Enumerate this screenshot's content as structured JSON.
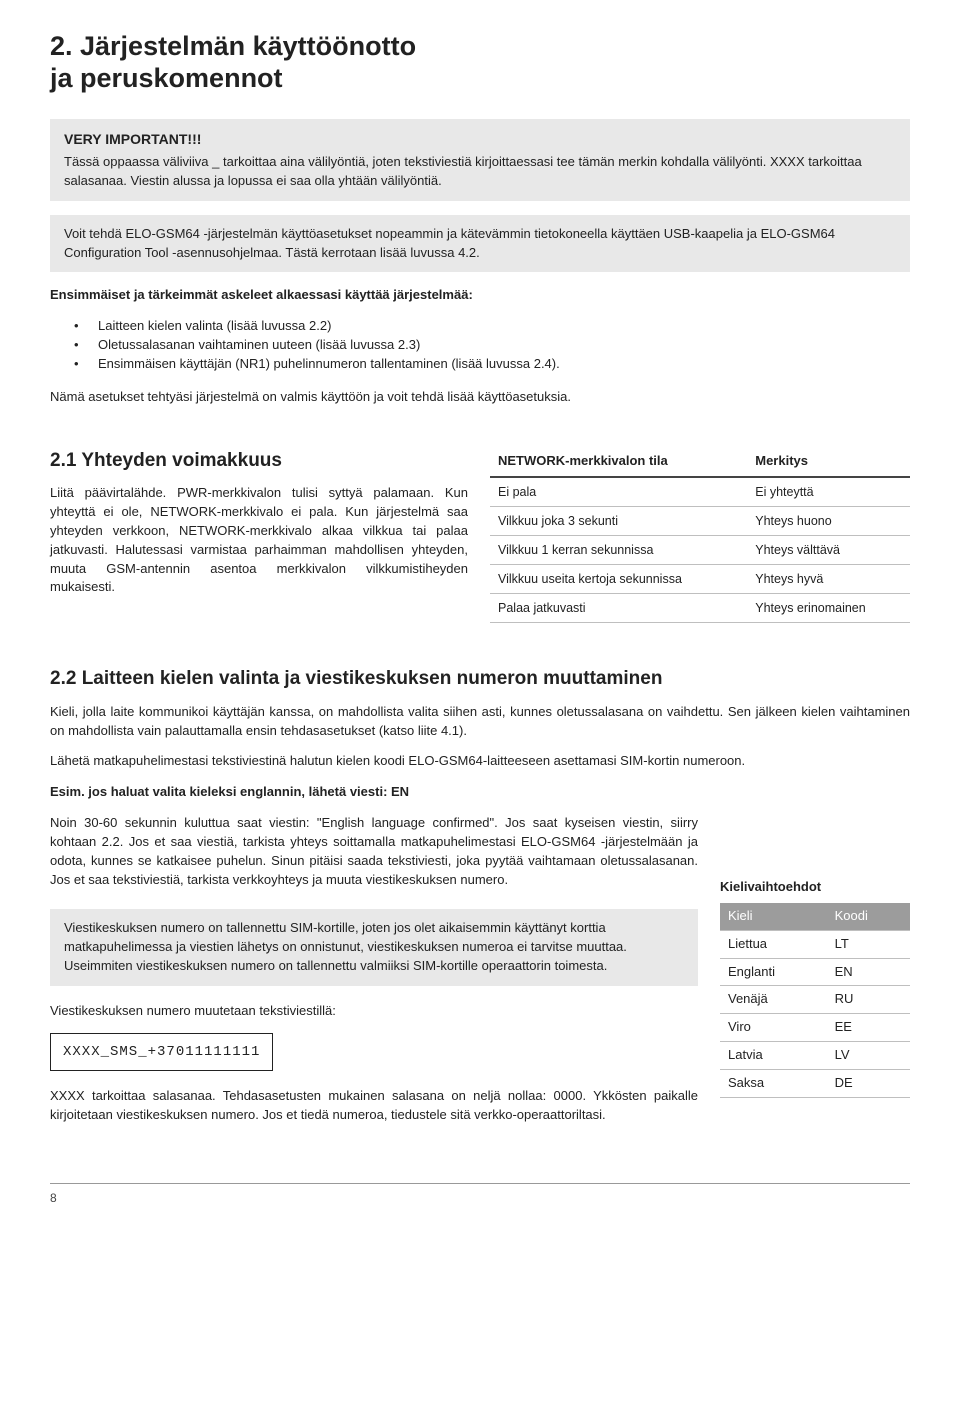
{
  "h1_line1": "2. Järjestelmän käyttöönotto",
  "h1_line2": "ja peruskomennot",
  "callout1_title": "VERY IMPORTANT!!!",
  "callout1_body": "Tässä oppaassa väliviiva _ tarkoittaa aina välilyöntiä, joten tekstiviestiä kirjoittaessasi tee tämän merkin kohdalla välilyönti. XXXX tarkoittaa salasanaa. Viestin alussa ja lopussa ei saa olla yhtään välilyöntiä.",
  "callout2_body": "Voit tehdä ELO-GSM64 -järjestelmän käyttöasetukset nopeammin ja kätevämmin tietokoneella käyttäen USB-kaapelia ja ELO-GSM64 Configuration Tool -asennusohjelmaa. Tästä kerrotaan lisää luvussa 4.2.",
  "steps_title": "Ensimmäiset ja tärkeimmät askeleet alkaessasi käyttää järjestelmää:",
  "steps": [
    "Laitteen kielen valinta (lisää luvussa 2.2)",
    "Oletussalasanan vaihtaminen uuteen (lisää luvussa 2.3)",
    "Ensimmäisen käyttäjän (NR1) puhelinnumeron tallentaminen (lisää luvussa 2.4)."
  ],
  "after_steps": "Nämä asetukset tehtyäsi järjestelmä on valmis käyttöön ja voit tehdä lisää käyttöasetuksia.",
  "s21_title": "2.1 Yhteyden voimakkuus",
  "s21_para": "Liitä päävirtalähde. PWR-merkkivalon tulisi syttyä palamaan. Kun yhteyttä ei ole, NETWORK-merkkivalo ei pala. Kun järjestelmä saa yhteyden verkkoon, NETWORK-merkkivalo alkaa vilkkua tai palaa jatkuvasti. Halutessasi varmistaa parhaimman mahdollisen yhteyden, muuta GSM-antennin asentoa merkkivalon vilkkumistiheyden mukaisesti.",
  "status_table": {
    "col1": "NETWORK-merkkivalon tila",
    "col2": "Merkitys",
    "rows": [
      [
        "Ei pala",
        "Ei yhteyttä"
      ],
      [
        "Vilkkuu joka 3 sekunti",
        "Yhteys huono"
      ],
      [
        "Vilkkuu 1 kerran sekunnissa",
        "Yhteys välttävä"
      ],
      [
        "Vilkkuu useita kertoja sekunnissa",
        "Yhteys hyvä"
      ],
      [
        "Palaa jatkuvasti",
        "Yhteys erinomainen"
      ]
    ]
  },
  "s22_title": "2.2 Laitteen kielen valinta ja viestikeskuksen numeron muuttaminen",
  "s22_p1": "Kieli, jolla laite kommunikoi käyttäjän kanssa, on mahdollista valita siihen asti, kunnes oletussalasana on vaihdettu. Sen jälkeen kielen vaihtaminen on mahdollista vain palauttamalla ensin tehdasasetukset (katso liite 4.1).",
  "s22_p2": "Lähetä matkapuhelimestasi tekstiviestinä halutun kielen koodi ELO-GSM64-laitteeseen asettamasi SIM-kortin numeroon.",
  "s22_ex_label": "Esim. jos haluat valita kieleksi englannin, lähetä viesti: EN",
  "s22_p3": "Noin 30-60 sekunnin kuluttua saat viestin: \"English language confirmed\". Jos saat kyseisen viestin, siirry kohtaan 2.2. Jos et saa viestiä, tarkista yhteys soittamalla matkapuhelimestasi ELO-GSM64 -järjestelmään ja odota, kunnes se katkaisee puhelun. Sinun pitäisi saada tekstiviesti, joka pyytää vaihtamaan oletussalasanan. Jos et saa tekstiviestiä, tarkista verkkoyhteys ja muuta viestikeskuksen numero.",
  "callout3_body": "Viestikeskuksen numero on tallennettu SIM-kortille, joten jos olet aikaisemmin käyttänyt korttia matkapuhelimessa ja viestien lähetys on onnistunut, viestikeskuksen numeroa ei tarvitse muuttaa. Useimmiten viestikeskuksen numero on tallennettu valmiiksi SIM-kortille operaattorin toimesta.",
  "sms_label": "Viestikeskuksen numero muutetaan tekstiviestillä:",
  "sms_code": "XXXX_SMS_+37011111111",
  "lang_title": "Kielivaihtoehdot",
  "lang_table": {
    "col1": "Kieli",
    "col2": "Koodi",
    "rows": [
      [
        "Liettua",
        "LT"
      ],
      [
        "Englanti",
        "EN"
      ],
      [
        "Venäjä",
        "RU"
      ],
      [
        "Viro",
        "EE"
      ],
      [
        "Latvia",
        "LV"
      ],
      [
        "Saksa",
        "DE"
      ]
    ]
  },
  "footer_para": "XXXX tarkoittaa salasanaa. Tehdasasetusten mukainen salasana on neljä nollaa: 0000. Ykkösten paikalle kirjoitetaan viestikeskuksen numero. Jos et tiedä numeroa, tiedustele sitä verkko-operaattoriltasi.",
  "page_number": "8"
}
